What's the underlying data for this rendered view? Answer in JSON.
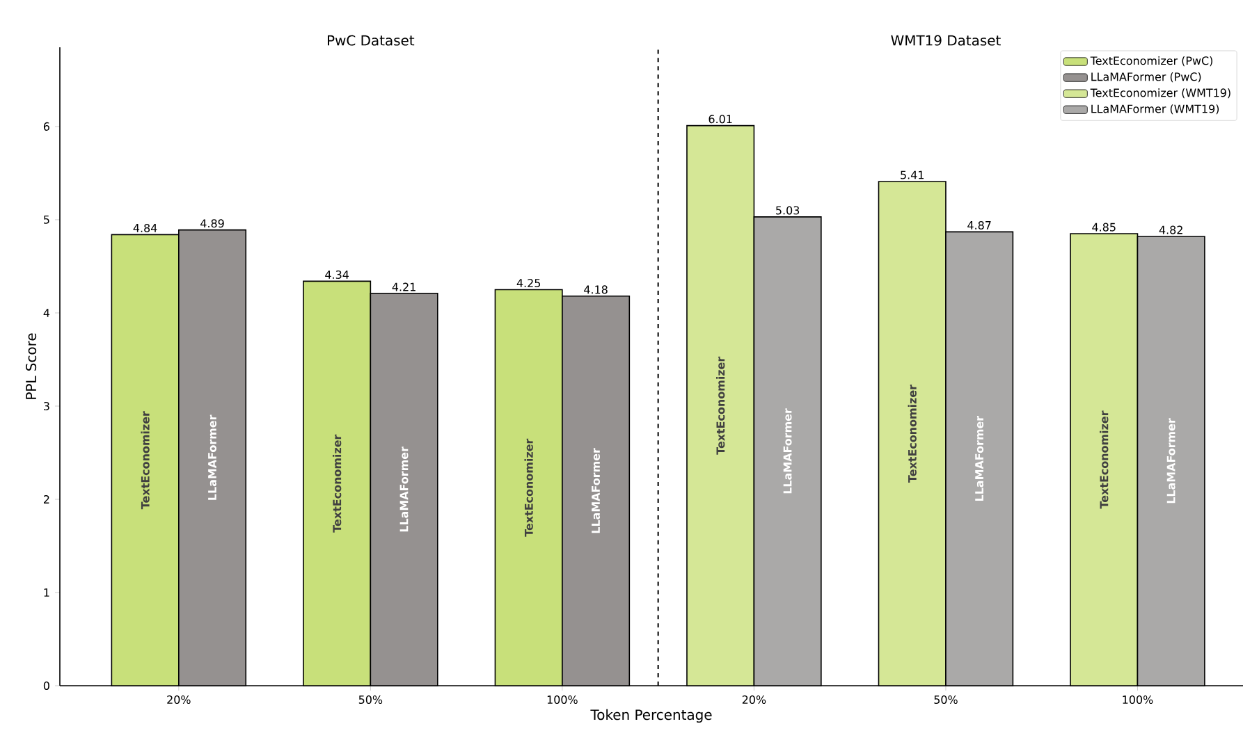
{
  "chart_data": {
    "type": "bar",
    "xlabel": "Token Percentage",
    "ylabel": "PPL Score",
    "categories": [
      "20%",
      "50%",
      "100%",
      "20%",
      "50%",
      "100%"
    ],
    "series": [
      {
        "name": "TextEconomizer (PwC)",
        "color": "#c8e07a",
        "values": [
          4.84,
          4.34,
          4.25,
          null,
          null,
          null
        ]
      },
      {
        "name": "LLaMAFormer (PwC)",
        "color": "#959190",
        "values": [
          4.89,
          4.21,
          4.18,
          null,
          null,
          null
        ]
      },
      {
        "name": "TextEconomizer (WMT19)",
        "color": "#d5e796",
        "values": [
          null,
          null,
          null,
          6.01,
          5.41,
          4.85
        ]
      },
      {
        "name": "LLaMAFormer (WMT19)",
        "color": "#aaa9a8",
        "values": [
          null,
          null,
          null,
          5.03,
          4.87,
          4.82
        ]
      }
    ],
    "ylim": [
      0,
      6.85
    ],
    "yticks": [
      0,
      1,
      2,
      3,
      4,
      5,
      6
    ],
    "annotations": [
      "PwC Dataset",
      "WMT19 Dataset",
      "TextEconomizer",
      "LLaMAFormer",
      "TextEconomizer",
      "LLaMAFormer",
      "TextEconomizer",
      "LLaMAFormer",
      "TextEconomizer",
      "LLaMAFormer",
      "TextEconomizer",
      "LLaMAFormer",
      "TextEconomizer",
      "LLaMAFormer"
    ],
    "data_labels": true,
    "legend": "top right",
    "grid": false
  }
}
